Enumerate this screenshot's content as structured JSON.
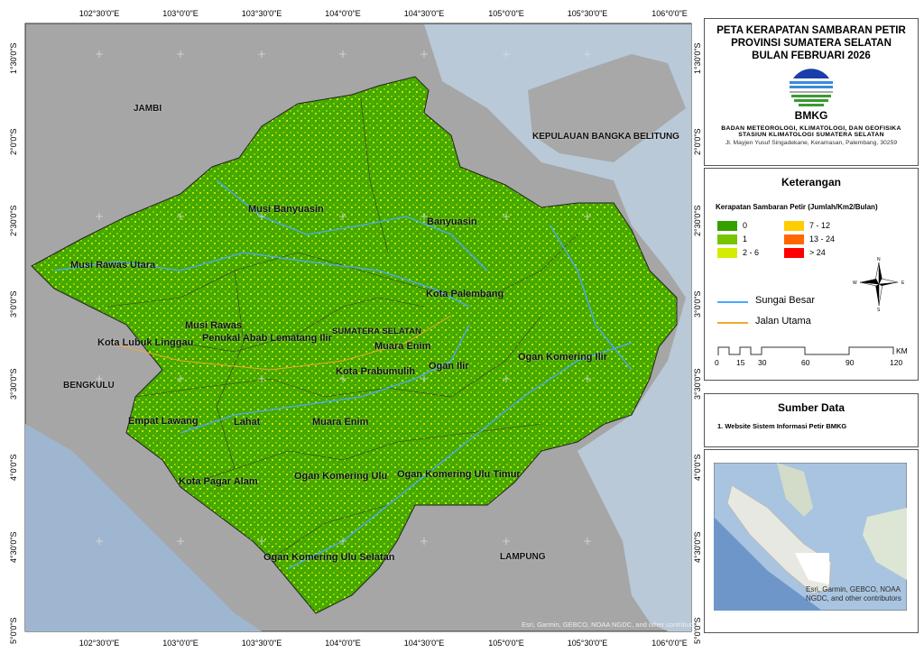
{
  "title": {
    "line1": "PETA KERAPATAN SAMBARAN PETIR",
    "line2": "PROVINSI SUMATERA SELATAN",
    "line3": "BULAN FEBRUARI 2026"
  },
  "agency": {
    "logo_text": "BMKG",
    "name": "BADAN METEOROLOGI, KLIMATOLOGI, DAN GEOFISIKA",
    "station": "STASIUN KLIMATOLOGI SUMATERA SELATAN",
    "address": "Jl. Mayjen Yusuf Singadekane, Keramasan, Palembang, 30259"
  },
  "legend": {
    "heading": "Keterangan",
    "subtitle": "Kerapatan Sambaran Petir (Jumlah/Km2/Bulan)",
    "classes": [
      {
        "label": "0",
        "color": "#33a000"
      },
      {
        "label": "1",
        "color": "#77c400"
      },
      {
        "label": "2 - 6",
        "color": "#d4ec00"
      },
      {
        "label": "7 - 12",
        "color": "#ffcc00"
      },
      {
        "label": "13 - 24",
        "color": "#ff6600"
      },
      {
        "label": "> 24",
        "color": "#ff0000"
      }
    ],
    "river": {
      "label": "Sungai Besar",
      "color": "#4aa8ff"
    },
    "road": {
      "label": "Jalan Utama",
      "color": "#f0a830"
    },
    "compass": {
      "n": "N",
      "s": "S",
      "e": "E",
      "w": "W"
    },
    "scale": {
      "unit": "KM",
      "ticks": [
        "0",
        "15",
        "30",
        "60",
        "90",
        "120"
      ]
    }
  },
  "source": {
    "heading": "Sumber Data",
    "items": [
      "1. Website Sistem Informasi Petir BMKG"
    ]
  },
  "inset": {
    "attribution": "Esri, Garmin, GEBCO, NOAA NGDC, and other contributors"
  },
  "map": {
    "attribution": "Esri, Garmin, GEBCO, NOAA NGDC, and other contributors",
    "lon_labels": [
      "102°30'0\"E",
      "103°0'0\"E",
      "103°30'0\"E",
      "104°0'0\"E",
      "104°30'0\"E",
      "105°0'0\"E",
      "105°30'0\"E",
      "106°0'0\"E"
    ],
    "lat_labels": [
      "1°30'0\"S",
      "2°0'0\"S",
      "2°30'0\"S",
      "3°0'0\"S",
      "3°30'0\"S",
      "4°0'0\"S",
      "4°30'0\"S",
      "5°0'0\"S"
    ],
    "regions": [
      "JAMBI",
      "KEPULAUAN BANGKA BELITUNG",
      "Musi Banyuasin",
      "Banyuasin",
      "Musi Rawas Utara",
      "Kota Palembang",
      "Musi Rawas",
      "SUMATERA SELATAN",
      "Penukal Abab Lematang Ilir",
      "Kota Lubuk Linggau",
      "Muara Enim",
      "Kota Prabumulih",
      "Ogan Ilir",
      "Ogan Komering Ilir",
      "BENGKULU",
      "Empat Lawang",
      "Lahat",
      "Muara Enim",
      "Kota Pagar Alam",
      "Ogan Komering Ulu",
      "Ogan Komering Ulu Timur",
      "Ogan Komering Ulu Selatan",
      "LAMPUNG"
    ]
  }
}
